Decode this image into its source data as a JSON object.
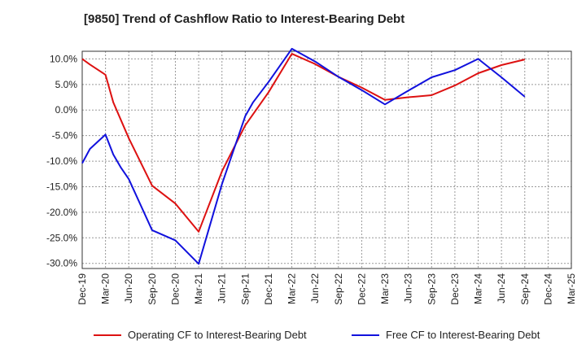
{
  "chart_data": {
    "type": "line",
    "title": "[9850]  Trend of Cashflow Ratio to Interest-Bearing Debt",
    "xlabel": "",
    "ylabel": "",
    "ylim": [
      -31,
      11.5
    ],
    "y_ticks": [
      10,
      5,
      0,
      -5,
      -10,
      -15,
      -20,
      -25,
      -30
    ],
    "y_tick_labels": [
      "10.0%",
      "5.0%",
      "0.0%",
      "-5.0%",
      "-10.0%",
      "-15.0%",
      "-20.0%",
      "-25.0%",
      "-30.0%"
    ],
    "x_tick_labels": [
      "Dec-19",
      "Mar-20",
      "Jun-20",
      "Sep-20",
      "Dec-20",
      "Mar-21",
      "Jun-21",
      "Sep-21",
      "Dec-21",
      "Mar-22",
      "Jun-22",
      "Sep-22",
      "Dec-22",
      "Mar-23",
      "Jun-23",
      "Sep-23",
      "Dec-23",
      "Mar-24",
      "Jun-24",
      "Sep-24",
      "Dec-24",
      "Mar-25"
    ],
    "grid": true,
    "legend_position": "bottom",
    "series": [
      {
        "name": "Operating CF to Interest-Bearing Debt",
        "color": "#dd1111",
        "x": [
          "Dec-19",
          "Jan-20",
          "Mar-20",
          "Apr-20",
          "May-20",
          "Jun-20",
          "Sep-20",
          "Dec-20",
          "Mar-21",
          "Jun-21",
          "Sep-21",
          "Dec-21",
          "Mar-22",
          "Jun-22",
          "Sep-22",
          "Dec-22",
          "Mar-23",
          "Jun-23",
          "Sep-23",
          "Dec-23",
          "Mar-24",
          "Jun-24",
          "Sep-24"
        ],
        "values": [
          10.0,
          8.9,
          6.9,
          1.5,
          -2.0,
          -5.5,
          -14.8,
          -18.3,
          -23.8,
          -12.0,
          -3.0,
          3.5,
          11.0,
          9.0,
          6.5,
          4.4,
          2.0,
          2.5,
          2.9,
          4.8,
          7.2,
          8.8,
          9.9
        ]
      },
      {
        "name": "Free CF to Interest-Bearing Debt",
        "color": "#1111dd",
        "x": [
          "Dec-19",
          "Jan-20",
          "Mar-20",
          "Apr-20",
          "May-20",
          "Jun-20",
          "Sep-20",
          "Dec-20",
          "Mar-21",
          "Jun-21",
          "Sep-21",
          "Oct-21",
          "Dec-21",
          "Mar-22",
          "Jun-22",
          "Sep-22",
          "Dec-22",
          "Mar-23",
          "Jun-23",
          "Sep-23",
          "Dec-23",
          "Mar-24",
          "Jun-24",
          "Sep-24"
        ],
        "values": [
          -10.4,
          -7.6,
          -4.8,
          -8.7,
          -11.3,
          -13.5,
          -23.5,
          -25.5,
          -30.1,
          -14.5,
          -1.2,
          1.5,
          5.5,
          12.0,
          9.5,
          6.5,
          3.9,
          1.1,
          3.8,
          6.4,
          7.8,
          10.0,
          6.4,
          2.6
        ]
      }
    ]
  }
}
